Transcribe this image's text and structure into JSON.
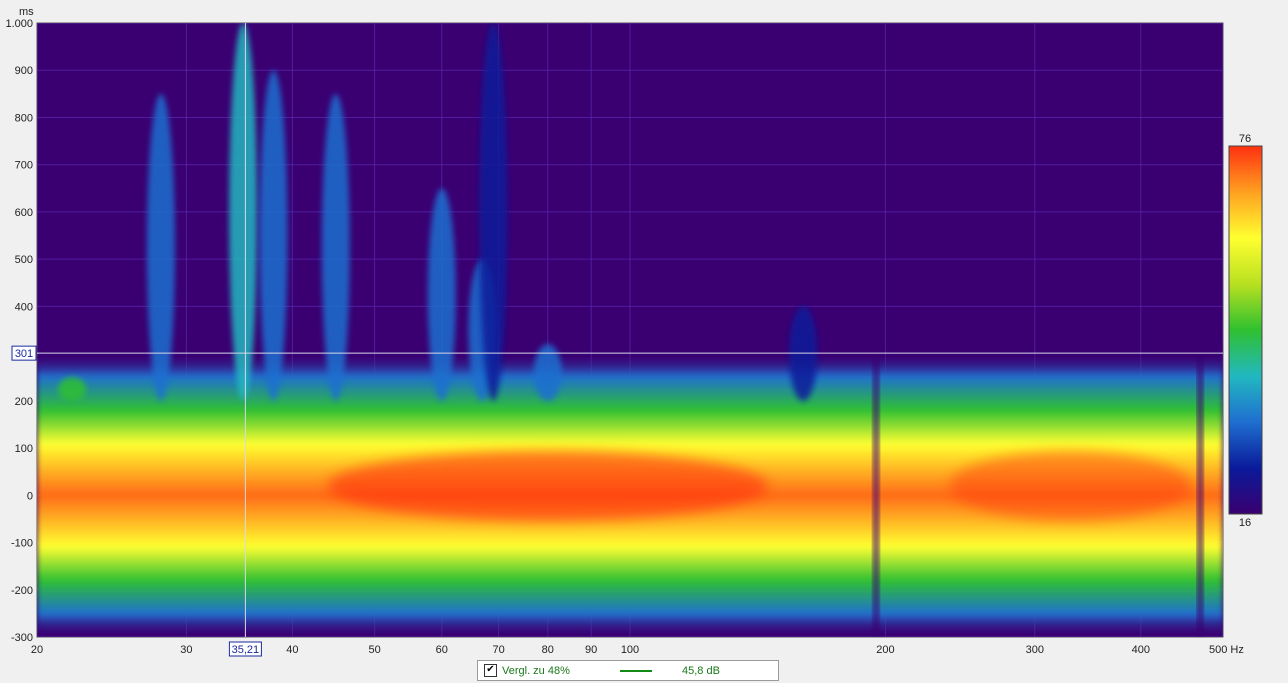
{
  "chart_data": {
    "type": "heatmap",
    "title": "",
    "x_unit": "Hz",
    "y_unit": "ms",
    "x_scale": "log",
    "xlim": [
      20,
      500
    ],
    "ylim": [
      -300,
      1000
    ],
    "x_ticks": [
      20,
      30,
      40,
      50,
      60,
      70,
      80,
      90,
      100,
      200,
      300,
      400,
      500
    ],
    "x_tick_labels": [
      "20",
      "30",
      "40",
      "50",
      "60",
      "70",
      "80",
      "90",
      "100",
      "200",
      "300",
      "400",
      "500 Hz"
    ],
    "y_ticks": [
      1000,
      900,
      800,
      700,
      600,
      500,
      400,
      200,
      100,
      0,
      -100,
      -200,
      -300
    ],
    "y_tick_labels": [
      "1.000",
      "900",
      "800",
      "700",
      "600",
      "500",
      "400",
      "200",
      "100",
      "0",
      "-100",
      "-200",
      "-300"
    ],
    "grid": true,
    "colorscale": {
      "min": 16,
      "max": 76,
      "min_label": "16",
      "max_label": "76",
      "colors": [
        "#3a0070",
        "#0a1a9a",
        "#1f6fd0",
        "#22b8c0",
        "#2fc030",
        "#b8e020",
        "#ffff30",
        "#ffa020",
        "#ff3010"
      ]
    },
    "cursor": {
      "x": 35.21,
      "y": 301,
      "x_label": "35,21",
      "y_label": "301"
    },
    "ridges": [
      {
        "x": 22,
        "y_end": 250,
        "level": 45
      },
      {
        "x": 28,
        "y_end": 850,
        "level": 30
      },
      {
        "x": 35,
        "y_end": 1000,
        "level": 36
      },
      {
        "x": 38,
        "y_end": 900,
        "level": 30
      },
      {
        "x": 45,
        "y_end": 850,
        "level": 28
      },
      {
        "x": 60,
        "y_end": 650,
        "level": 30
      },
      {
        "x": 67,
        "y_end": 500,
        "level": 32
      },
      {
        "x": 69,
        "y_end": 1000,
        "level": 26
      },
      {
        "x": 80,
        "y_end": 320,
        "level": 30
      },
      {
        "x": 160,
        "y_end": 400,
        "level": 26
      }
    ],
    "legend": {
      "checked": true,
      "label": "Vergl. zu 48%",
      "value": "45,8 dB",
      "color": "#138a13"
    }
  },
  "axis_unit_label": "ms"
}
